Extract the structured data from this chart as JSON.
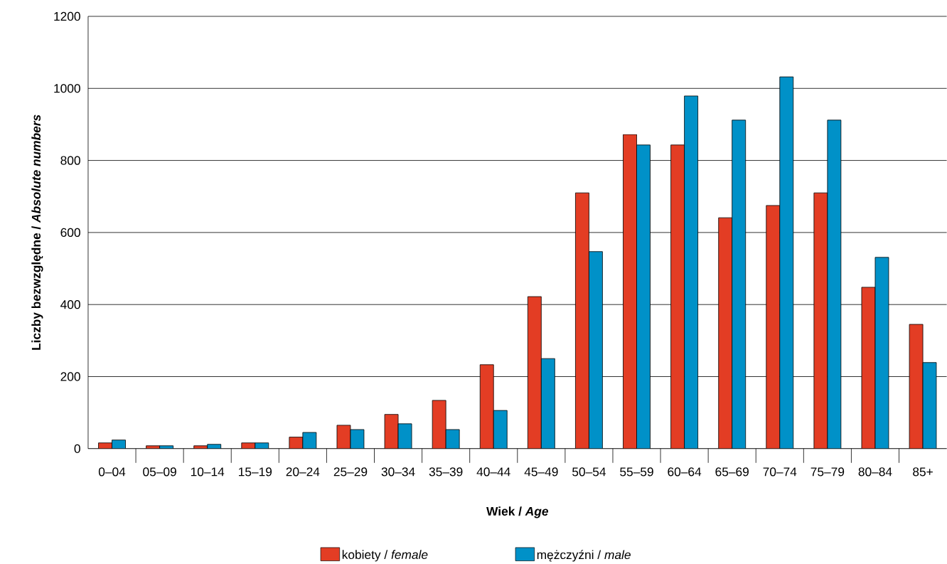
{
  "chart_data": {
    "type": "bar",
    "xlabel": "Wiek / *Age*",
    "ylabel": "Liczby bezwzględne / *Absolute numbers*",
    "categories": [
      "0–04",
      "05–09",
      "10–14",
      "15–19",
      "20–24",
      "25–29",
      "30–34",
      "35–39",
      "40–44",
      "45–49",
      "50–54",
      "55–59",
      "60–64",
      "65–69",
      "70–74",
      "75–79",
      "80–84",
      "85+"
    ],
    "series": [
      {
        "name": "kobiety / *female*",
        "color": "#e33d24",
        "values": [
          16,
          8,
          8,
          16,
          32,
          65,
          95,
          134,
          233,
          422,
          710,
          872,
          843,
          641,
          675,
          710,
          448,
          345
        ]
      },
      {
        "name": "mężczyźni / *male*",
        "color": "#0091c8",
        "values": [
          24,
          8,
          12,
          16,
          45,
          53,
          69,
          53,
          106,
          250,
          547,
          843,
          979,
          912,
          1032,
          912,
          531,
          239
        ]
      }
    ],
    "ylim": [
      0,
      1200
    ],
    "yticks": [
      0,
      200,
      400,
      600,
      800,
      1000,
      1200
    ],
    "grid": "y",
    "legend": "bottom"
  }
}
